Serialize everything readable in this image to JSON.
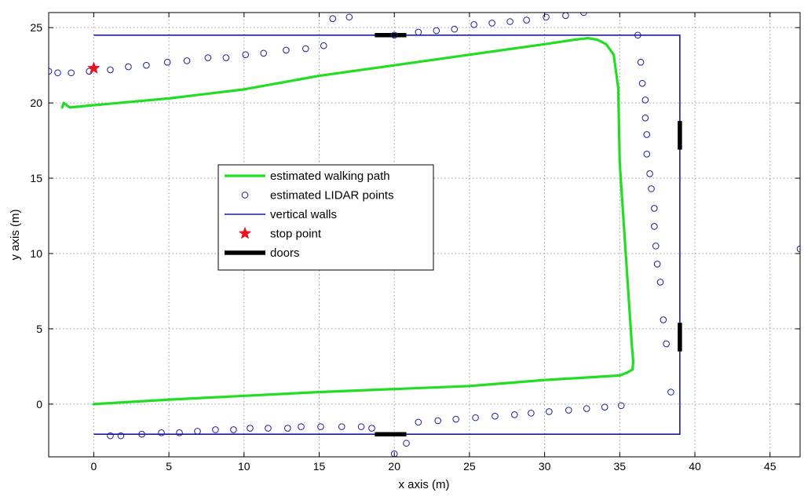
{
  "chart_data": {
    "type": "scatter",
    "title": "",
    "xlabel": "x axis (m)",
    "ylabel": "y axis (m)",
    "xlim": [
      -3,
      47
    ],
    "ylim": [
      -3.5,
      26
    ],
    "grid": true,
    "legend_position": "center-left",
    "xticks": [
      0,
      5,
      10,
      15,
      20,
      25,
      30,
      35,
      40,
      45
    ],
    "yticks": [
      0,
      5,
      10,
      15,
      20,
      25
    ],
    "xtick_labels": [
      "0",
      "5",
      "10",
      "15",
      "20",
      "25",
      "30",
      "35",
      "40",
      "45"
    ],
    "ytick_labels": [
      "0",
      "5",
      "10",
      "15",
      "20",
      "25"
    ],
    "legend": [
      {
        "label": "estimated walking path",
        "kind": "line",
        "color": "#22dd22"
      },
      {
        "label": "estimated LIDAR points",
        "kind": "circle",
        "color": "#1a1aa0"
      },
      {
        "label": "vertical walls",
        "kind": "line",
        "color": "#1a1aa0"
      },
      {
        "label": "stop point",
        "kind": "star",
        "color": "#e8141e"
      },
      {
        "label": "doors",
        "kind": "thick-line",
        "color": "#000000"
      }
    ],
    "walking_path": {
      "x": [
        -2.1,
        -2.0,
        -1.6,
        0,
        5,
        10,
        15,
        20,
        25,
        30,
        32,
        32.9,
        33.5,
        34.1,
        34.6,
        34.9,
        35.0,
        35.2,
        35.4,
        35.6,
        35.8,
        35.9,
        35.85,
        35.5,
        35,
        30,
        25,
        20,
        15,
        10,
        5,
        0
      ],
      "y": [
        19.7,
        20.0,
        19.7,
        19.85,
        20.3,
        20.9,
        21.8,
        22.5,
        23.2,
        23.9,
        24.2,
        24.3,
        24.2,
        23.9,
        23.2,
        21.0,
        16.0,
        13.0,
        10.0,
        7.0,
        4.0,
        2.8,
        2.3,
        2.1,
        1.9,
        1.6,
        1.2,
        1.0,
        0.8,
        0.55,
        0.3,
        0.0
      ]
    },
    "lidar_points": {
      "x": [
        -3.0,
        -2.4,
        -1.5,
        -0.3,
        1.1,
        2.3,
        3.5,
        4.9,
        6.2,
        7.6,
        8.8,
        10.1,
        11.3,
        12.8,
        14.1,
        15.3,
        15.9,
        17.0,
        20.0,
        21.6,
        22.8,
        24.0,
        25.3,
        26.5,
        27.7,
        28.8,
        30.1,
        31.4,
        32.6,
        33.7,
        36.2,
        36.4,
        36.5,
        36.7,
        36.7,
        36.8,
        36.8,
        37.0,
        37.1,
        37.3,
        37.3,
        37.4,
        37.5,
        37.7,
        37.9,
        38.1,
        38.4,
        1.1,
        1.8,
        3.2,
        4.5,
        5.7,
        6.9,
        8.1,
        9.3,
        10.4,
        11.6,
        12.9,
        13.8,
        15.1,
        16.5,
        17.8,
        18.5,
        20.0,
        20.8,
        21.6,
        22.9,
        24.1,
        25.4,
        26.7,
        28.0,
        29.1,
        30.3,
        31.6,
        32.8,
        34.0,
        35.1,
        47.0
      ],
      "y": [
        22.1,
        22.0,
        22.0,
        22.1,
        22.2,
        22.4,
        22.5,
        22.7,
        22.8,
        23.0,
        23.0,
        23.2,
        23.3,
        23.5,
        23.6,
        23.8,
        25.6,
        25.7,
        24.5,
        24.7,
        24.8,
        24.9,
        25.2,
        25.3,
        25.4,
        25.5,
        25.7,
        25.8,
        26.0,
        26.2,
        24.5,
        22.7,
        21.3,
        20.2,
        19.0,
        17.9,
        16.6,
        15.3,
        14.3,
        13.0,
        11.8,
        10.5,
        9.3,
        8.1,
        5.6,
        4.0,
        0.8,
        -2.1,
        -2.1,
        -2.0,
        -1.9,
        -1.9,
        -1.8,
        -1.7,
        -1.7,
        -1.6,
        -1.6,
        -1.6,
        -1.5,
        -1.5,
        -1.5,
        -1.5,
        -1.6,
        -3.3,
        -2.6,
        -1.2,
        -1.1,
        -1.0,
        -0.9,
        -0.8,
        -0.7,
        -0.6,
        -0.5,
        -0.4,
        -0.3,
        -0.2,
        -0.1,
        10.3
      ]
    },
    "walls": {
      "x": [
        0,
        39,
        39,
        0
      ],
      "y": [
        24.5,
        24.5,
        -2.0,
        -2.0
      ]
    },
    "stop_point": {
      "x": 0,
      "y": 22.3
    },
    "doors": [
      {
        "x": [
          18.7,
          20.8
        ],
        "y": [
          24.5,
          24.5
        ]
      },
      {
        "x": [
          18.7,
          20.8
        ],
        "y": [
          -2.0,
          -2.0
        ]
      },
      {
        "x": [
          39.0,
          39.0
        ],
        "y": [
          16.9,
          18.8
        ]
      },
      {
        "x": [
          39.0,
          39.0
        ],
        "y": [
          3.5,
          5.4
        ]
      }
    ]
  }
}
